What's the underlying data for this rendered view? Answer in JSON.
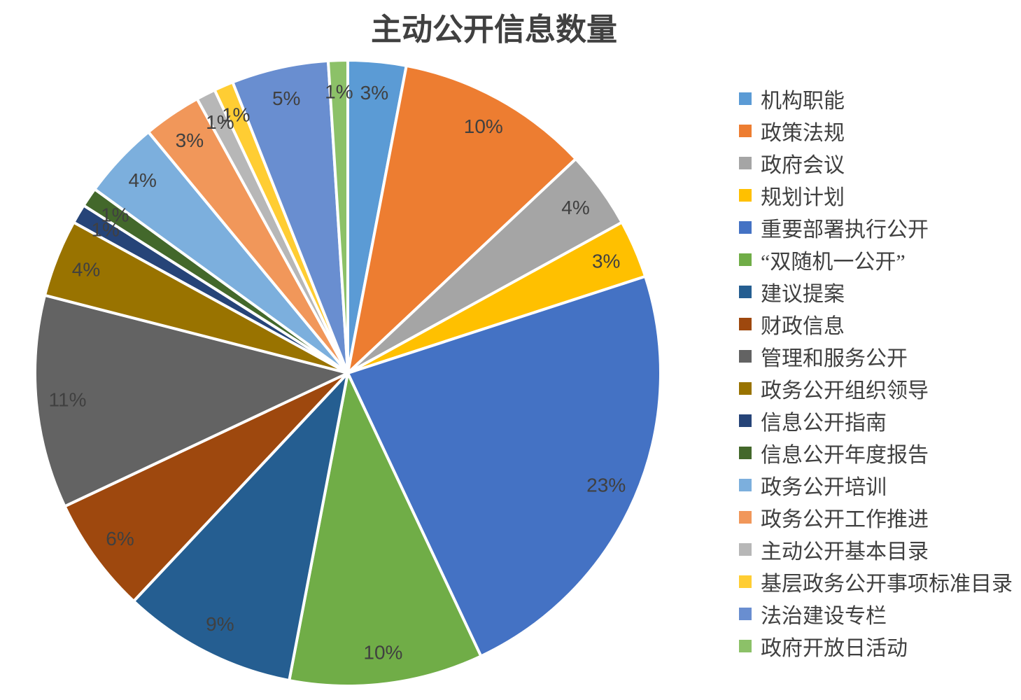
{
  "chart_data": {
    "type": "pie",
    "title": "主动公开信息数量",
    "legend_position": "right",
    "start_angle_deg": 0,
    "direction": "clockwise",
    "slice_border_color": "#FFFFFF",
    "label_text_color": "#404040",
    "legend_text_color": "#404040",
    "title_text_color": "#404040",
    "background_color": "#FFFFFF",
    "slices": [
      {
        "label": "机构职能",
        "value_pct": 3,
        "data_label": "3%",
        "color": "#5B9BD5"
      },
      {
        "label": "政策法规",
        "value_pct": 10,
        "data_label": "10%",
        "color": "#ED7D31"
      },
      {
        "label": "政府会议",
        "value_pct": 4,
        "data_label": "4%",
        "color": "#A5A5A5"
      },
      {
        "label": "规划计划",
        "value_pct": 3,
        "data_label": "3%",
        "color": "#FFC000"
      },
      {
        "label": "重要部署执行公开",
        "value_pct": 23,
        "data_label": "23%",
        "color": "#4472C4"
      },
      {
        "label": "“双随机一公开”",
        "value_pct": 10,
        "data_label": "10%",
        "color": "#70AD47"
      },
      {
        "label": "建议提案",
        "value_pct": 9,
        "data_label": "9%",
        "color": "#255E91"
      },
      {
        "label": "财政信息",
        "value_pct": 6,
        "data_label": "6%",
        "color": "#9E480E"
      },
      {
        "label": "管理和服务公开",
        "value_pct": 11,
        "data_label": "11%",
        "color": "#636363"
      },
      {
        "label": "政务公开组织领导",
        "value_pct": 4,
        "data_label": "4%",
        "color": "#997300"
      },
      {
        "label": "信息公开指南",
        "value_pct": 1,
        "data_label": "1%",
        "color": "#264478"
      },
      {
        "label": "信息公开年度报告",
        "value_pct": 1,
        "data_label": "1%",
        "color": "#43682B"
      },
      {
        "label": "政务公开培训",
        "value_pct": 4,
        "data_label": "4%",
        "color": "#7CAFDD"
      },
      {
        "label": "政务公开工作推进",
        "value_pct": 3,
        "data_label": "3%",
        "color": "#F1975A"
      },
      {
        "label": "主动公开基本目录",
        "value_pct": 1,
        "data_label": "1%",
        "color": "#B7B7B7"
      },
      {
        "label": "基层政务公开事项标准目录",
        "value_pct": 1,
        "data_label": "1%",
        "color": "#FFCD33"
      },
      {
        "label": "法治建设专栏",
        "value_pct": 5,
        "data_label": "5%",
        "color": "#698ED0"
      },
      {
        "label": "政府开放日活动",
        "value_pct": 1,
        "data_label": "1%",
        "color": "#8CC168"
      }
    ]
  }
}
